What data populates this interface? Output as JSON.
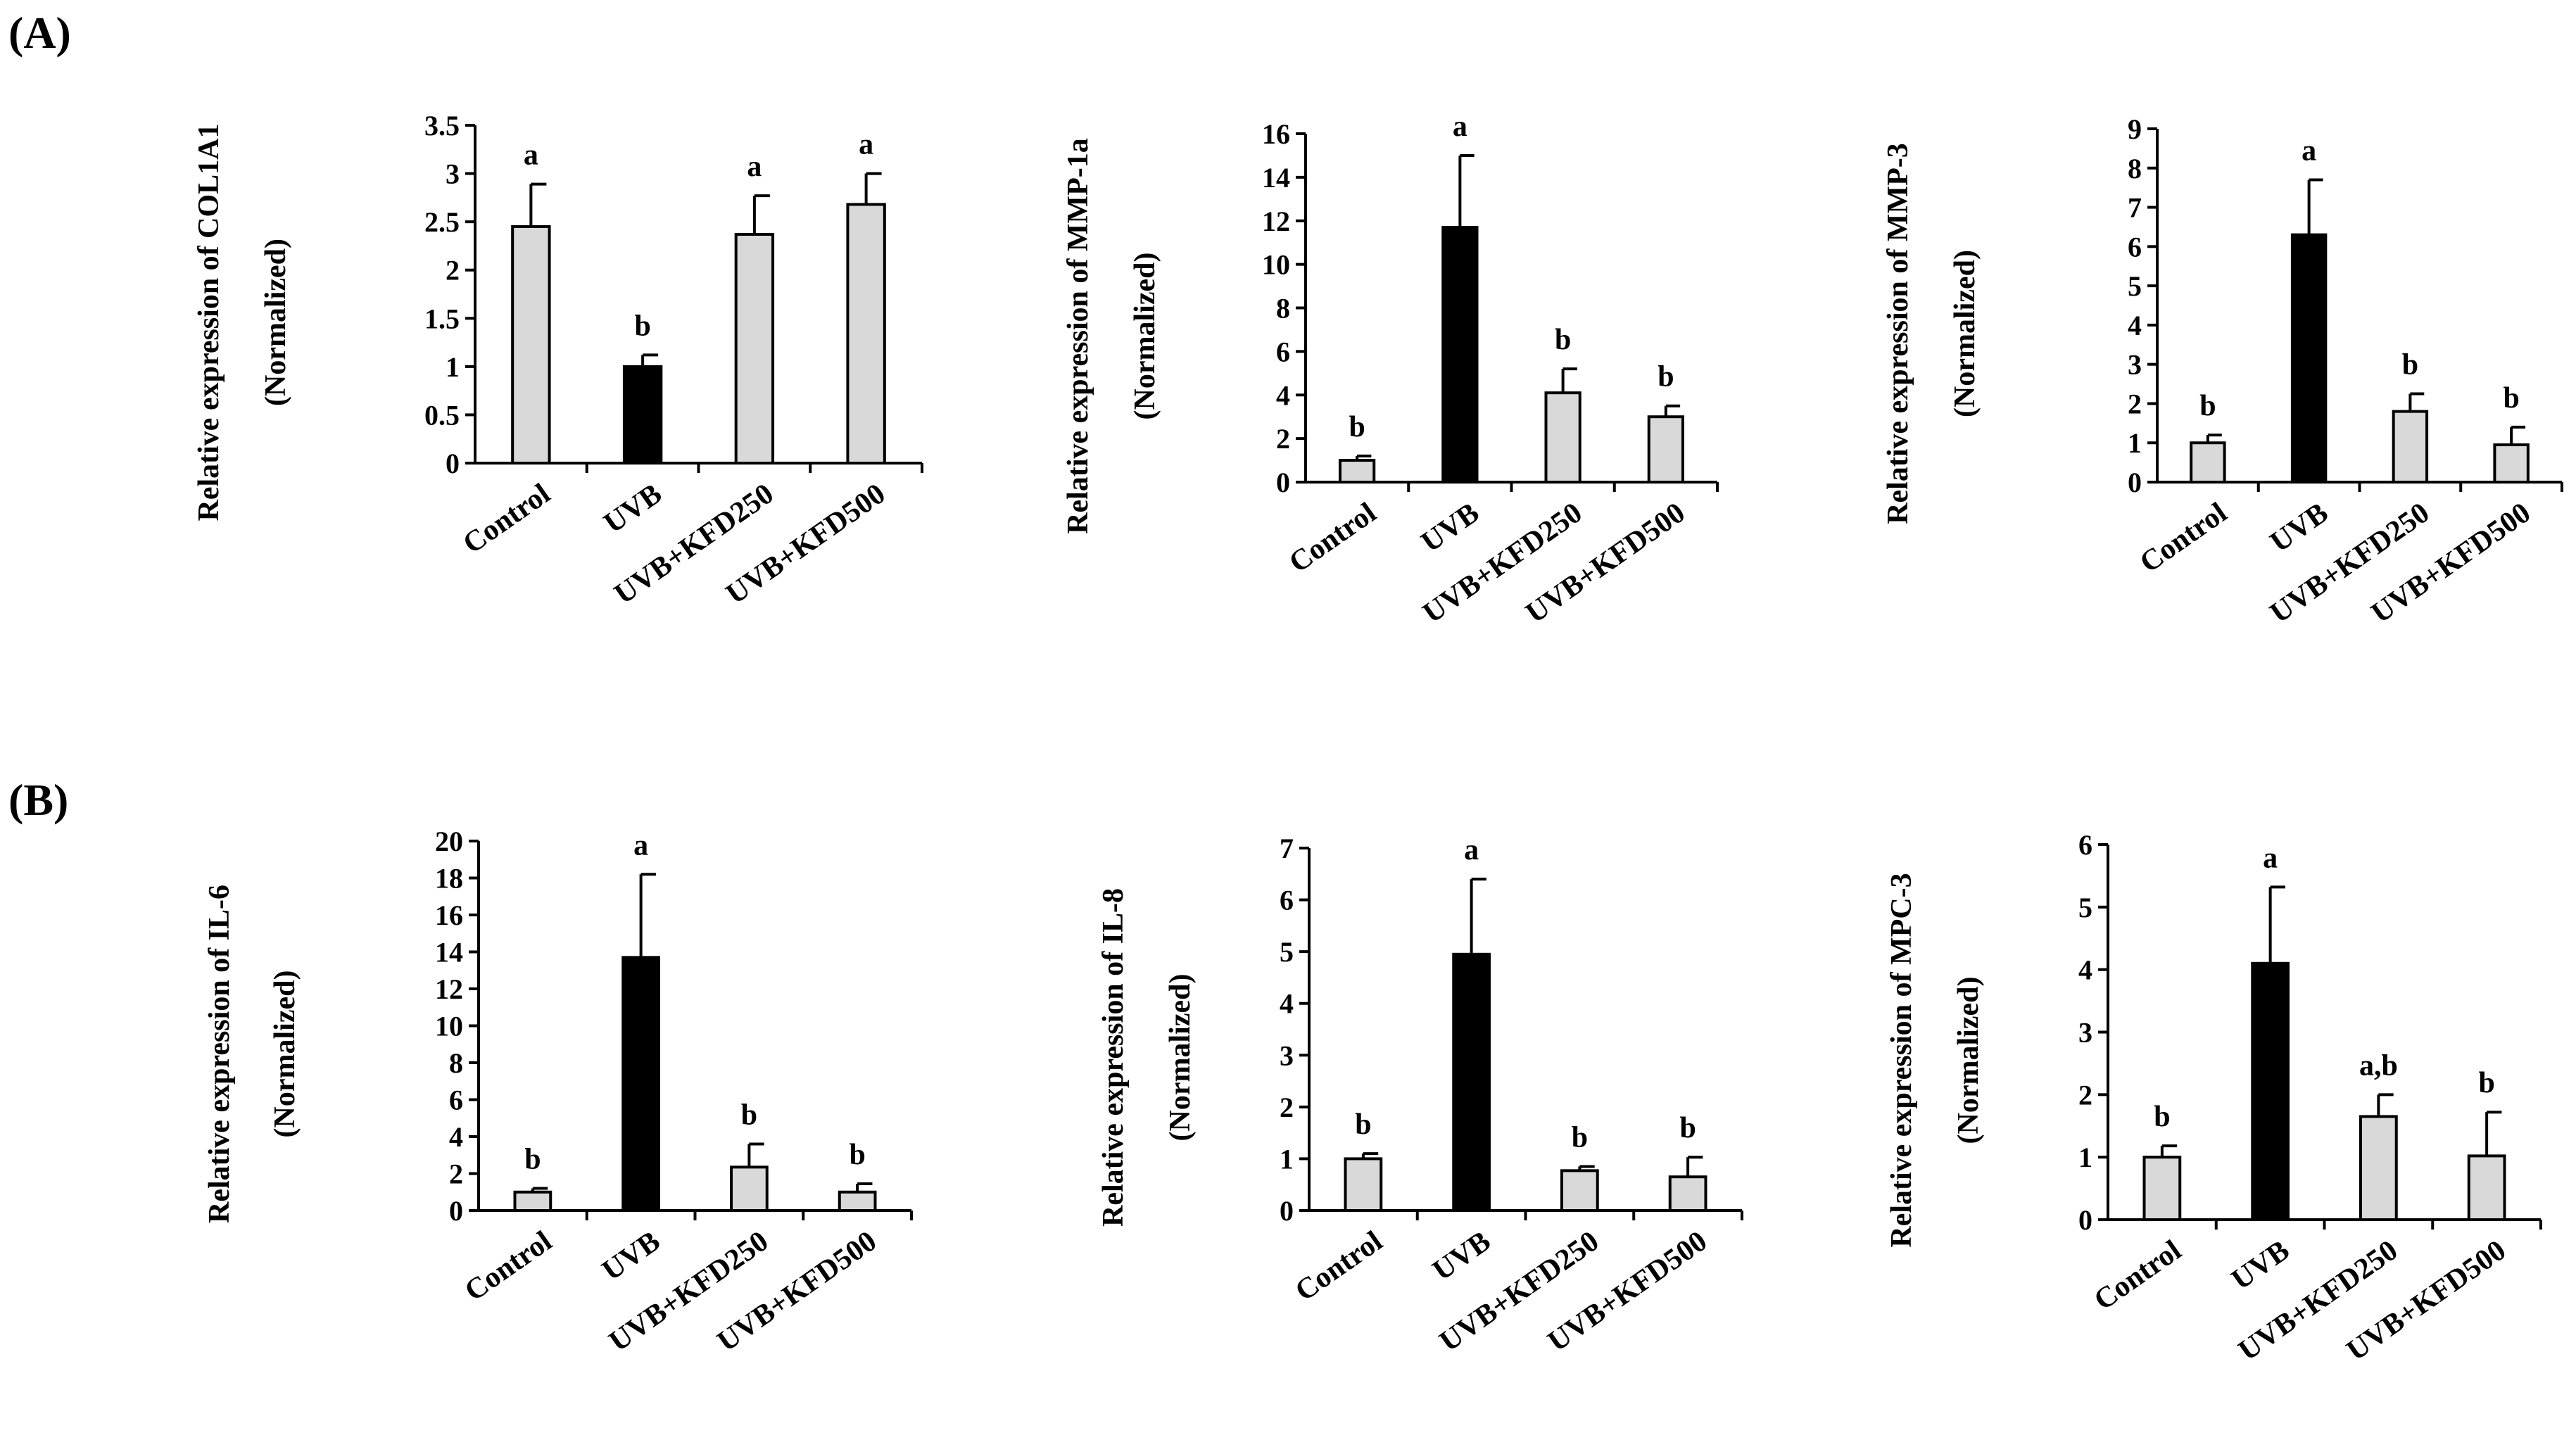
{
  "panels": [
    {
      "label": "(A)"
    },
    {
      "label": "(B)"
    }
  ],
  "chart_data": [
    {
      "type": "bar",
      "panel": "(A)",
      "ylabel": "Relative expression of COL1A1",
      "ylabel2": "(Normalized)",
      "categories": [
        "Control",
        "UVB",
        "UVB+KFD250",
        "UVB+KFD500"
      ],
      "values": [
        2.45,
        1.0,
        2.37,
        2.68
      ],
      "errors": [
        0.44,
        0.12,
        0.4,
        0.32
      ],
      "sig_letters": [
        "a",
        "b",
        "a",
        "a"
      ],
      "bar_colors": [
        "#d9d9d9",
        "#000000",
        "#d9d9d9",
        "#d9d9d9"
      ],
      "ylim": [
        0,
        3.5
      ],
      "yticks": [
        "0",
        "0.5",
        "1",
        "1.5",
        "2",
        "2.5",
        "3",
        "3.5"
      ]
    },
    {
      "type": "bar",
      "panel": "(A)",
      "ylabel": "Relative expression of MMP-1a",
      "ylabel2": "(Normalized)",
      "categories": [
        "Control",
        "UVB",
        "UVB+KFD250",
        "UVB+KFD500"
      ],
      "values": [
        1.0,
        11.7,
        4.1,
        3.0
      ],
      "errors": [
        0.2,
        3.3,
        1.1,
        0.5
      ],
      "sig_letters": [
        "b",
        "a",
        "b",
        "b"
      ],
      "bar_colors": [
        "#d9d9d9",
        "#000000",
        "#d9d9d9",
        "#d9d9d9"
      ],
      "ylim": [
        0,
        16
      ],
      "yticks": [
        "0",
        "2",
        "4",
        "6",
        "8",
        "10",
        "12",
        "14",
        "16"
      ]
    },
    {
      "type": "bar",
      "panel": "(A)",
      "ylabel": "Relative expression of MMP-3",
      "ylabel2": "(Normalized)",
      "categories": [
        "Control",
        "UVB",
        "UVB+KFD250",
        "UVB+KFD500"
      ],
      "values": [
        1.0,
        6.3,
        1.8,
        0.95
      ],
      "errors": [
        0.2,
        1.4,
        0.45,
        0.45
      ],
      "sig_letters": [
        "b",
        "a",
        "b",
        "b"
      ],
      "bar_colors": [
        "#d9d9d9",
        "#000000",
        "#d9d9d9",
        "#d9d9d9"
      ],
      "ylim": [
        0,
        9
      ],
      "yticks": [
        "0",
        "1",
        "2",
        "3",
        "4",
        "5",
        "6",
        "7",
        "8",
        "9"
      ]
    },
    {
      "type": "bar",
      "panel": "(B)",
      "ylabel": "Relative expression of IL-6",
      "ylabel2": "(Normalized)",
      "categories": [
        "Control",
        "UVB",
        "UVB+KFD250",
        "UVB+KFD500"
      ],
      "values": [
        1.0,
        13.7,
        2.35,
        1.0
      ],
      "errors": [
        0.2,
        4.5,
        1.25,
        0.45
      ],
      "sig_letters": [
        "b",
        "a",
        "b",
        "b"
      ],
      "bar_colors": [
        "#d9d9d9",
        "#000000",
        "#d9d9d9",
        "#d9d9d9"
      ],
      "ylim": [
        0,
        20
      ],
      "yticks": [
        "0",
        "2",
        "4",
        "6",
        "8",
        "10",
        "12",
        "14",
        "16",
        "18",
        "20"
      ]
    },
    {
      "type": "bar",
      "panel": "(B)",
      "ylabel": "Relative expression of IL-8",
      "ylabel2": "(Normalized)",
      "categories": [
        "Control",
        "UVB",
        "UVB+KFD250",
        "UVB+KFD500"
      ],
      "values": [
        1.0,
        4.95,
        0.77,
        0.65
      ],
      "errors": [
        0.1,
        1.45,
        0.08,
        0.38
      ],
      "sig_letters": [
        "b",
        "a",
        "b",
        "b"
      ],
      "bar_colors": [
        "#d9d9d9",
        "#000000",
        "#d9d9d9",
        "#d9d9d9"
      ],
      "ylim": [
        0,
        7
      ],
      "yticks": [
        "0",
        "1",
        "2",
        "3",
        "4",
        "5",
        "6",
        "7"
      ]
    },
    {
      "type": "bar",
      "panel": "(B)",
      "ylabel": "Relative expression of MPC-3",
      "ylabel2": "(Normalized)",
      "categories": [
        "Control",
        "UVB",
        "UVB+KFD250",
        "UVB+KFD500"
      ],
      "values": [
        1.0,
        4.1,
        1.65,
        1.02
      ],
      "errors": [
        0.18,
        1.22,
        0.35,
        0.7
      ],
      "sig_letters": [
        "b",
        "a",
        "a,b",
        "b"
      ],
      "bar_colors": [
        "#d9d9d9",
        "#000000",
        "#d9d9d9",
        "#d9d9d9"
      ],
      "ylim": [
        0,
        6
      ],
      "yticks": [
        "0",
        "1",
        "2",
        "3",
        "4",
        "5",
        "6"
      ]
    }
  ]
}
